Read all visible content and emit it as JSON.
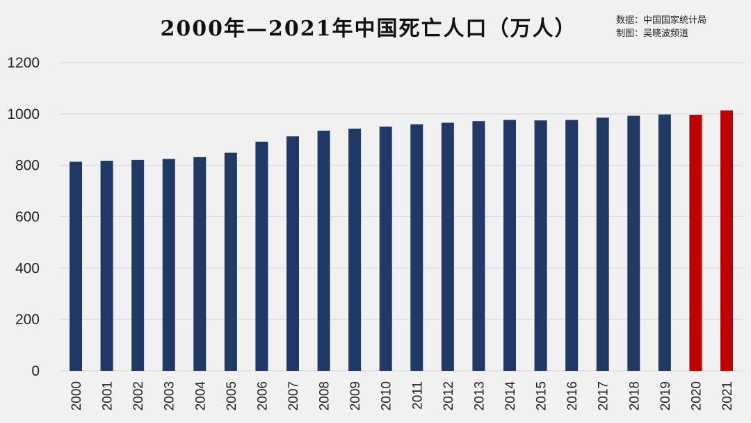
{
  "title": "2000年—2021年中国死亡人口（万人）",
  "source": {
    "data_line": "数据：中国国家统计局",
    "author_line": "制图：吴晓波频道"
  },
  "colors": {
    "bar_default": "#1f3864",
    "bar_highlight": "#c00000",
    "grid": "#d4d4d4",
    "background": "#f1f1f1"
  },
  "chart_data": {
    "type": "bar",
    "title": "2000年—2021年中国死亡人口（万人）",
    "xlabel": "",
    "ylabel": "",
    "ylim": [
      0,
      1200
    ],
    "yticks": [
      0,
      200,
      400,
      600,
      800,
      1000,
      1200
    ],
    "grid": true,
    "categories": [
      "2000",
      "2001",
      "2002",
      "2003",
      "2004",
      "2005",
      "2006",
      "2007",
      "2008",
      "2009",
      "2010",
      "2011",
      "2012",
      "2013",
      "2014",
      "2015",
      "2016",
      "2017",
      "2018",
      "2019",
      "2020",
      "2021"
    ],
    "values": [
      814,
      818,
      821,
      825,
      832,
      849,
      892,
      913,
      935,
      943,
      951,
      960,
      966,
      972,
      977,
      975,
      977,
      986,
      993,
      998,
      997,
      1014
    ],
    "highlighted_categories": [
      "2020",
      "2021"
    ]
  }
}
